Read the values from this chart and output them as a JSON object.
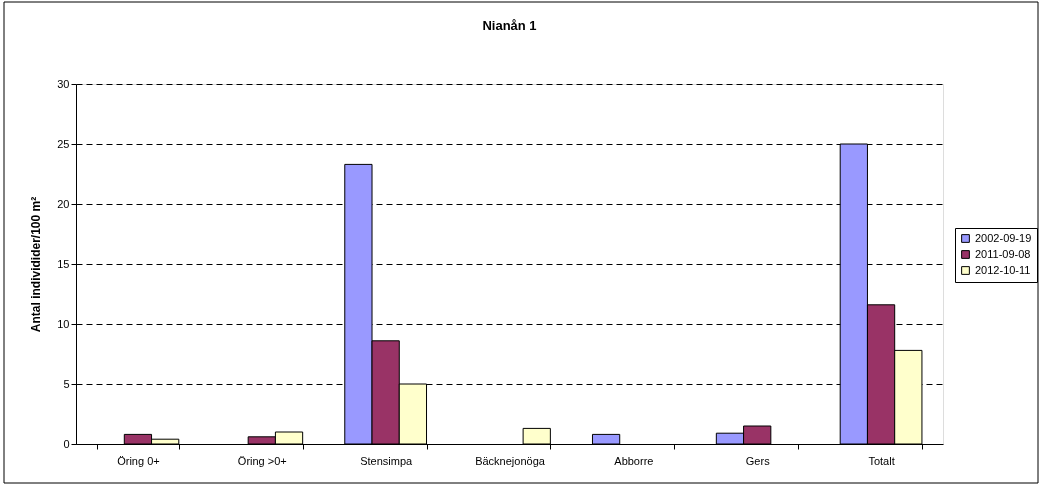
{
  "chart_data": {
    "type": "bar",
    "title": "Nianån 1",
    "ylabel": "Antal individider/100 m²",
    "categories": [
      "Öring 0+",
      "Öring >0+",
      "Stensimpa",
      "Bäcknejonöga",
      "Abborre",
      "Gers",
      "Totalt"
    ],
    "series": [
      {
        "name": "2002-09-19",
        "color": "#9999ff",
        "values": [
          null,
          null,
          23.3,
          null,
          0.8,
          0.9,
          25.0
        ]
      },
      {
        "name": "2011-09-08",
        "color": "#993366",
        "values": [
          0.8,
          0.6,
          8.6,
          null,
          null,
          1.5,
          11.6
        ]
      },
      {
        "name": "2012-10-11",
        "color": "#ffffcc",
        "values": [
          0.4,
          1.0,
          5.0,
          1.3,
          null,
          null,
          7.8
        ]
      }
    ],
    "ylim": [
      0,
      30
    ],
    "yticks": [
      0,
      5,
      10,
      15,
      20,
      25,
      30
    ],
    "grid": "y",
    "legend": "right"
  }
}
